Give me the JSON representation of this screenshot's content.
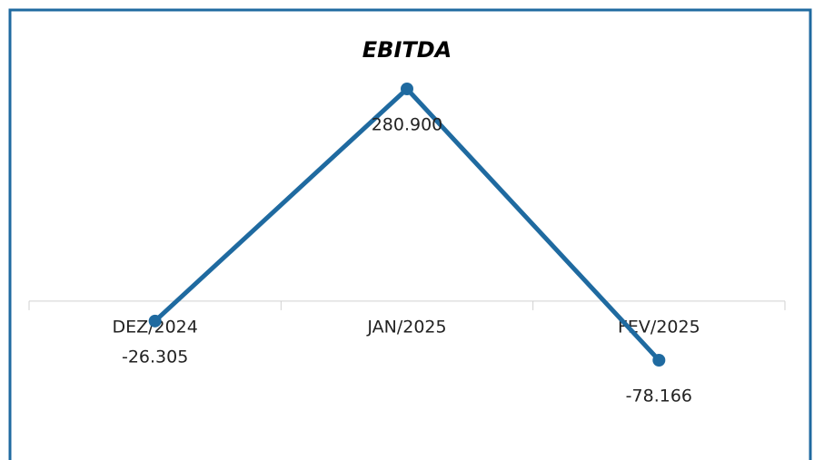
{
  "chart_data": {
    "type": "line",
    "title": "EBITDA",
    "categories": [
      "DEZ/2024",
      "JAN/2025",
      "FEV/2025"
    ],
    "series": [
      {
        "name": "EBITDA",
        "color": "#1f6aa0",
        "values": [
          -26305,
          280900,
          -78166
        ],
        "value_labels": [
          "-26.305",
          "280.900",
          "-78.166"
        ]
      }
    ]
  }
}
